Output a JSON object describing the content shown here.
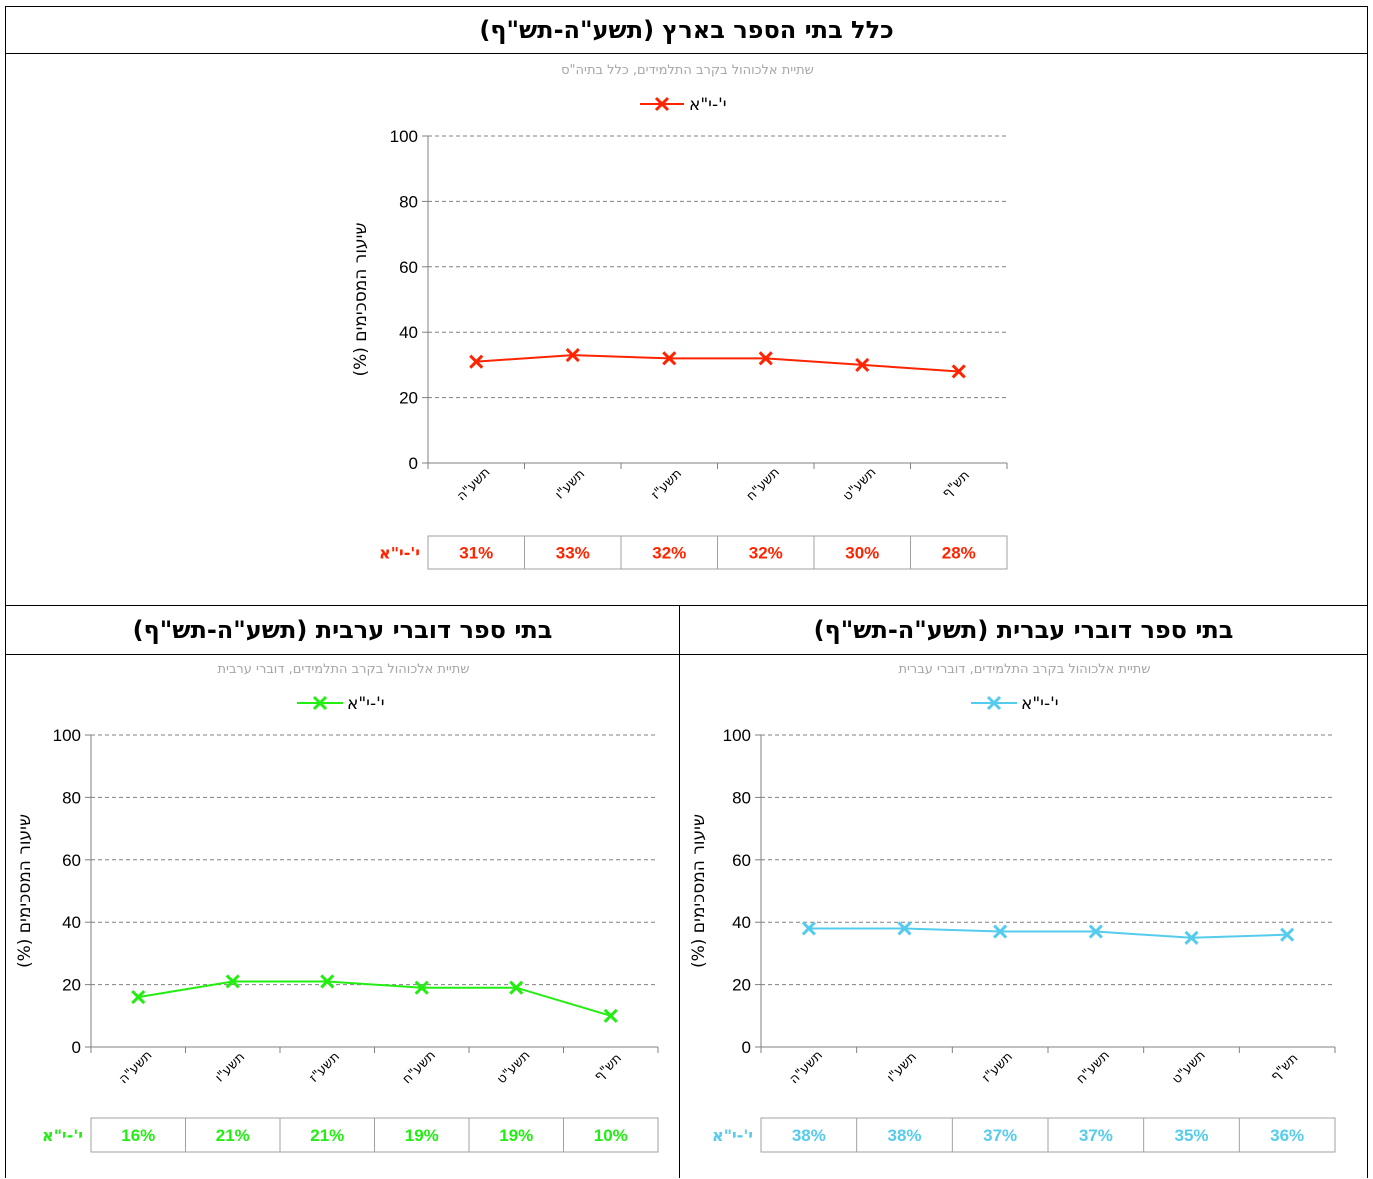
{
  "panels": [
    {
      "id": "all",
      "title": "כלל בתי הספר בארץ (תשע\"ה-תש\"ף)",
      "chart_data": {
        "type": "line",
        "subtitle": "שתיית אלכוהול בקרב התלמידים, כלל בתיה\"ס",
        "ylabel": "שיעור המסכימים (%)",
        "ylim": [
          0,
          100
        ],
        "yticks": [
          0,
          20,
          40,
          60,
          80,
          100
        ],
        "grid": true,
        "legend_position": "top",
        "categories": [
          "תשע\"ה",
          "תשע\"ו",
          "תשע\"ז",
          "תשע\"ח",
          "תשע\"ט",
          "תש\"ף"
        ],
        "series": [
          {
            "name": "י'-י\"א",
            "color": "#ff2400",
            "values": [
              31,
              33,
              32,
              32,
              30,
              28
            ],
            "table": [
              "31%",
              "33%",
              "32%",
              "32%",
              "30%",
              "28%"
            ]
          }
        ]
      }
    },
    {
      "id": "arabic",
      "title": "בתי ספר דוברי ערבית (תשע\"ה-תש\"ף)",
      "chart_data": {
        "type": "line",
        "subtitle": "שתיית אלכוהול בקרב התלמידים, דוברי ערבית",
        "ylabel": "שיעור המסכימים (%)",
        "ylim": [
          0,
          100
        ],
        "yticks": [
          0,
          20,
          40,
          60,
          80,
          100
        ],
        "grid": true,
        "legend_position": "top",
        "categories": [
          "תשע\"ה",
          "תשע\"ו",
          "תשע\"ז",
          "תשע\"ח",
          "תשע\"ט",
          "תש\"ף"
        ],
        "series": [
          {
            "name": "י'-י\"א",
            "color": "#22ee11",
            "values": [
              16,
              21,
              21,
              19,
              19,
              10
            ],
            "table": [
              "16%",
              "21%",
              "21%",
              "19%",
              "19%",
              "10%"
            ]
          }
        ]
      }
    },
    {
      "id": "hebrew",
      "title": "בתי ספר דוברי עברית (תשע\"ה-תש\"ף)",
      "chart_data": {
        "type": "line",
        "subtitle": "שתיית אלכוהול בקרב התלמידים, דוברי עברית",
        "ylabel": "שיעור המסכימים (%)",
        "ylim": [
          0,
          100
        ],
        "yticks": [
          0,
          20,
          40,
          60,
          80,
          100
        ],
        "grid": true,
        "legend_position": "top",
        "categories": [
          "תשע\"ה",
          "תשע\"ו",
          "תשע\"ז",
          "תשע\"ח",
          "תשע\"ט",
          "תש\"ף"
        ],
        "series": [
          {
            "name": "י'-י\"א",
            "color": "#55ccee",
            "values": [
              38,
              38,
              37,
              37,
              35,
              36
            ],
            "table": [
              "38%",
              "38%",
              "37%",
              "37%",
              "35%",
              "36%"
            ]
          }
        ]
      }
    }
  ]
}
